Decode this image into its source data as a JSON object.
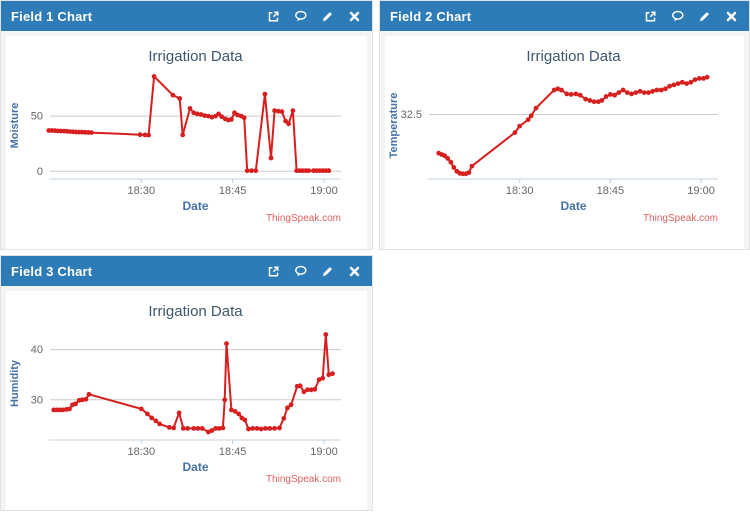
{
  "colors": {
    "header_bg": "#2d7cb7",
    "header_text": "#ffffff",
    "panel_body_bg": "#f4f4f4",
    "panel_border": "#e2e2e2",
    "chart_bg": "#ffffff",
    "series": "#d62020",
    "grid": "#cccccc",
    "axis_line": "#c0d0e0",
    "tick_text": "#666666",
    "axis_title": "#4572a7",
    "chart_title": "#3e576f",
    "credits": "#dd5f5f"
  },
  "panels": [
    {
      "header": {
        "title": "Field 1 Chart",
        "buttons": [
          {
            "name": "expand-chart-button",
            "icon": "external-link-icon"
          },
          {
            "name": "comment-button",
            "icon": "speech-bubble-icon"
          },
          {
            "name": "edit-chart-button",
            "icon": "pencil-icon"
          },
          {
            "name": "close-chart-button",
            "icon": "close-icon"
          }
        ]
      },
      "chart_data": {
        "type": "line",
        "title": "Irrigation Data",
        "xlabel": "Date",
        "ylabel": "Moisture",
        "credits": "ThingSpeak.com",
        "x_unit": "minutes after 18:00",
        "xlim": [
          15,
          62.8
        ],
        "ylim": [
          -7,
          90
        ],
        "xticks": [
          {
            "v": 30,
            "label": "18:30"
          },
          {
            "v": 45,
            "label": "18:45"
          },
          {
            "v": 60,
            "label": "19:00"
          }
        ],
        "yticks": [
          {
            "v": 0,
            "label": "0"
          },
          {
            "v": 50,
            "label": "50"
          }
        ],
        "grid": true,
        "legend": "none",
        "points": [
          [
            14.8,
            37
          ],
          [
            15.3,
            37
          ],
          [
            15.8,
            36.8
          ],
          [
            16.3,
            36.6
          ],
          [
            16.8,
            36.5
          ],
          [
            17.3,
            36.4
          ],
          [
            17.8,
            36.2
          ],
          [
            18.3,
            36
          ],
          [
            18.8,
            35.8
          ],
          [
            19.3,
            35.6
          ],
          [
            19.8,
            35.5
          ],
          [
            20.3,
            35.4
          ],
          [
            20.8,
            35.3
          ],
          [
            21.3,
            35.2
          ],
          [
            21.8,
            35.1
          ],
          [
            29.8,
            33.2
          ],
          [
            30.6,
            33
          ],
          [
            31.2,
            32.8
          ],
          [
            32.1,
            86
          ],
          [
            35.2,
            69
          ],
          [
            36.3,
            66
          ],
          [
            36.8,
            33
          ],
          [
            38,
            57
          ],
          [
            38.6,
            53
          ],
          [
            39.2,
            52
          ],
          [
            39.8,
            51.5
          ],
          [
            40.4,
            50.5
          ],
          [
            41,
            50
          ],
          [
            41.6,
            49
          ],
          [
            42.2,
            50
          ],
          [
            42.7,
            52
          ],
          [
            43.2,
            49.5
          ],
          [
            43.8,
            47.5
          ],
          [
            44.3,
            46.5
          ],
          [
            44.8,
            47
          ],
          [
            45.3,
            53
          ],
          [
            45.8,
            51
          ],
          [
            46.4,
            50
          ],
          [
            46.9,
            48.5
          ],
          [
            47.4,
            0.5
          ],
          [
            48.1,
            0.5
          ],
          [
            48.8,
            0.5
          ],
          [
            50.3,
            70
          ],
          [
            51.3,
            12
          ],
          [
            51.9,
            55
          ],
          [
            52.5,
            54.5
          ],
          [
            53.1,
            54
          ],
          [
            53.7,
            45.5
          ],
          [
            54.2,
            43
          ],
          [
            54.9,
            55
          ],
          [
            55.5,
            0.5
          ],
          [
            56,
            0.5
          ],
          [
            56.5,
            0.5
          ],
          [
            57,
            0.5
          ],
          [
            57.5,
            0.5
          ],
          [
            58.3,
            0.5
          ],
          [
            58.8,
            0.5
          ],
          [
            59.3,
            0.5
          ],
          [
            59.8,
            0.5
          ],
          [
            60.3,
            0.5
          ],
          [
            60.8,
            0.5
          ]
        ]
      }
    },
    {
      "header": {
        "title": "Field 2 Chart",
        "buttons": [
          {
            "name": "expand-chart-button",
            "icon": "external-link-icon"
          },
          {
            "name": "comment-button",
            "icon": "speech-bubble-icon"
          },
          {
            "name": "edit-chart-button",
            "icon": "pencil-icon"
          },
          {
            "name": "close-chart-button",
            "icon": "close-icon"
          }
        ]
      },
      "chart_data": {
        "type": "line",
        "title": "Irrigation Data",
        "xlabel": "Date",
        "ylabel": "Temperature",
        "credits": "ThingSpeak.com",
        "x_unit": "minutes after 18:00",
        "xlim": [
          15,
          62.8
        ],
        "ylim": [
          30,
          34.15
        ],
        "xticks": [
          {
            "v": 30,
            "label": "18:30"
          },
          {
            "v": 45,
            "label": "18:45"
          },
          {
            "v": 60,
            "label": "19:00"
          }
        ],
        "yticks": [
          {
            "v": 32.5,
            "label": "32.5"
          }
        ],
        "grid": true,
        "legend": "none",
        "points": [
          [
            16.6,
            31
          ],
          [
            17.1,
            30.95
          ],
          [
            17.6,
            30.9
          ],
          [
            18.1,
            30.8
          ],
          [
            18.6,
            30.65
          ],
          [
            19.1,
            30.45
          ],
          [
            19.6,
            30.3
          ],
          [
            20.1,
            30.22
          ],
          [
            20.6,
            30.2
          ],
          [
            21.1,
            30.2
          ],
          [
            21.6,
            30.25
          ],
          [
            22.1,
            30.5
          ],
          [
            29.2,
            31.8
          ],
          [
            30,
            32.05
          ],
          [
            31.4,
            32.3
          ],
          [
            31.9,
            32.45
          ],
          [
            32.7,
            32.75
          ],
          [
            35.7,
            33.45
          ],
          [
            36.3,
            33.5
          ],
          [
            36.9,
            33.45
          ],
          [
            37.8,
            33.3
          ],
          [
            38.5,
            33.28
          ],
          [
            39.3,
            33.3
          ],
          [
            40,
            33.25
          ],
          [
            40.9,
            33.1
          ],
          [
            41.6,
            33.05
          ],
          [
            42.3,
            33
          ],
          [
            43,
            33
          ],
          [
            43.6,
            33.05
          ],
          [
            44.3,
            33.2
          ],
          [
            45,
            33.28
          ],
          [
            45.7,
            33.25
          ],
          [
            46.4,
            33.35
          ],
          [
            47.1,
            33.45
          ],
          [
            47.8,
            33.35
          ],
          [
            48.5,
            33.3
          ],
          [
            49.2,
            33.35
          ],
          [
            49.9,
            33.4
          ],
          [
            50.6,
            33.35
          ],
          [
            51.3,
            33.35
          ],
          [
            52,
            33.4
          ],
          [
            52.7,
            33.45
          ],
          [
            53.4,
            33.45
          ],
          [
            54.1,
            33.5
          ],
          [
            54.8,
            33.6
          ],
          [
            55.5,
            33.65
          ],
          [
            56.2,
            33.7
          ],
          [
            56.9,
            33.75
          ],
          [
            57.6,
            33.7
          ],
          [
            58.3,
            33.75
          ],
          [
            59,
            33.85
          ],
          [
            59.7,
            33.9
          ],
          [
            60.4,
            33.9
          ],
          [
            61,
            33.95
          ]
        ]
      }
    },
    {
      "header": {
        "title": "Field 3 Chart",
        "buttons": [
          {
            "name": "expand-chart-button",
            "icon": "external-link-icon"
          },
          {
            "name": "comment-button",
            "icon": "speech-bubble-icon"
          },
          {
            "name": "edit-chart-button",
            "icon": "pencil-icon"
          },
          {
            "name": "close-chart-button",
            "icon": "close-icon"
          }
        ]
      },
      "chart_data": {
        "type": "line",
        "title": "Irrigation Data",
        "xlabel": "Date",
        "ylabel": "Humidity",
        "credits": "ThingSpeak.com",
        "x_unit": "minutes after 18:00",
        "xlim": [
          15,
          62.8
        ],
        "ylim": [
          22,
          44.5
        ],
        "xticks": [
          {
            "v": 30,
            "label": "18:30"
          },
          {
            "v": 45,
            "label": "18:45"
          },
          {
            "v": 60,
            "label": "19:00"
          }
        ],
        "yticks": [
          {
            "v": 30,
            "label": "30"
          },
          {
            "v": 40,
            "label": "40"
          }
        ],
        "grid": true,
        "legend": "none",
        "points": [
          [
            15.6,
            28
          ],
          [
            16.1,
            28
          ],
          [
            16.6,
            28
          ],
          [
            17.1,
            28
          ],
          [
            17.7,
            28.1
          ],
          [
            18.2,
            28.2
          ],
          [
            18.7,
            29
          ],
          [
            19.2,
            29.2
          ],
          [
            19.8,
            29.9
          ],
          [
            20.3,
            30
          ],
          [
            20.9,
            30.1
          ],
          [
            21.4,
            31.1
          ],
          [
            30,
            28.2
          ],
          [
            31,
            27.2
          ],
          [
            31.7,
            26.4
          ],
          [
            32.4,
            25.8
          ],
          [
            33,
            25.2
          ],
          [
            34.6,
            24.5
          ],
          [
            35.3,
            24.4
          ],
          [
            36.2,
            27.4
          ],
          [
            36.9,
            24.3
          ],
          [
            37.6,
            24.3
          ],
          [
            38.6,
            24.3
          ],
          [
            39.3,
            24.3
          ],
          [
            40,
            24.3
          ],
          [
            41,
            23.6
          ],
          [
            41.6,
            23.9
          ],
          [
            42.2,
            24.3
          ],
          [
            42.8,
            24.3
          ],
          [
            43.4,
            24.4
          ],
          [
            43.7,
            30
          ],
          [
            44,
            41.2
          ],
          [
            44.8,
            28
          ],
          [
            45.4,
            27.7
          ],
          [
            46,
            27.2
          ],
          [
            46.5,
            26.4
          ],
          [
            47,
            26
          ],
          [
            47.6,
            24.2
          ],
          [
            48.3,
            24.3
          ],
          [
            49,
            24.3
          ],
          [
            49.7,
            24.2
          ],
          [
            50.4,
            24.3
          ],
          [
            51.1,
            24.3
          ],
          [
            51.9,
            24.3
          ],
          [
            52.7,
            24.4
          ],
          [
            53.4,
            26.3
          ],
          [
            54,
            28.4
          ],
          [
            54.6,
            29
          ],
          [
            55.6,
            32.7
          ],
          [
            56.1,
            32.8
          ],
          [
            56.7,
            31.6
          ],
          [
            57.3,
            32
          ],
          [
            57.9,
            32
          ],
          [
            58.5,
            32.1
          ],
          [
            59.2,
            34
          ],
          [
            59.8,
            34.3
          ],
          [
            60.3,
            43
          ],
          [
            60.8,
            35
          ],
          [
            61.4,
            35.2
          ]
        ]
      }
    }
  ]
}
